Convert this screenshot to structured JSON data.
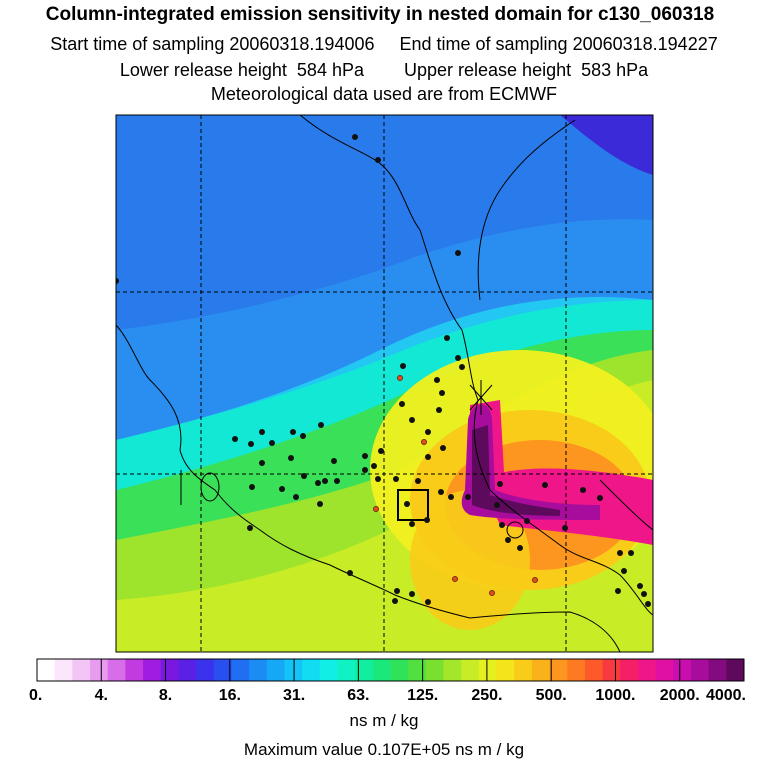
{
  "header": {
    "title": "Column-integrated emission sensitivity in nested domain for c130_060318",
    "sampling_line": "Start time of sampling 20060318.194006     End time of sampling 20060318.194227",
    "release_line": "Lower release height  584 hPa        Upper release height  583 hPa",
    "met_line": "Meteorological data used are from ECMWF"
  },
  "chart_data": {
    "type": "heatmap",
    "title": "Column-integrated emission sensitivity in nested domain for c130_060318",
    "colorbar": {
      "unit": "ns m / kg",
      "tick_labels": [
        "0.",
        "4.",
        "8.",
        "16.",
        "31.",
        "63.",
        "125.",
        "250.",
        "500.",
        "1000.",
        "2000.",
        "4000."
      ],
      "colors": [
        "#ffffff",
        "#fbe6fb",
        "#f3c4f6",
        "#e89cef",
        "#d76de8",
        "#c13be0",
        "#9f1de0",
        "#7a18e0",
        "#5a20e6",
        "#3a32ec",
        "#2a4ff0",
        "#206ef2",
        "#1a8cf4",
        "#16a8f6",
        "#14c4f6",
        "#12dcf2",
        "#10eee6",
        "#10f2c4",
        "#12eea0",
        "#1ae87a",
        "#30e25a",
        "#52e040",
        "#7ae030",
        "#a4e62a",
        "#c8ec26",
        "#e6f020",
        "#f4e41a",
        "#f8cc18",
        "#fab21a",
        "#fc961e",
        "#fe7a22",
        "#fc5a28",
        "#f83a40",
        "#f41f66",
        "#ee1688",
        "#e010a4",
        "#c80eae",
        "#a80c9c",
        "#840a80",
        "#5e0a5c"
      ]
    },
    "maximum_label": "Maximum value  0.107E+05 ns m / kg",
    "grid": true
  }
}
